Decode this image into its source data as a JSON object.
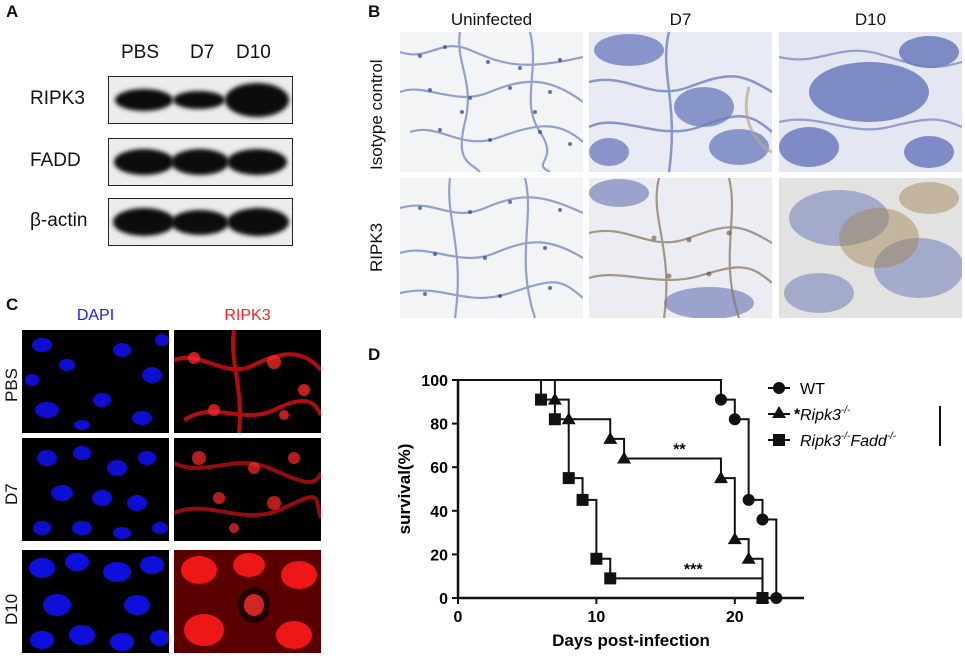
{
  "panels": {
    "a": "A",
    "b": "B",
    "c": "C",
    "d": "D"
  },
  "western_blot": {
    "lanes": [
      "PBS",
      "D7",
      "D10"
    ],
    "proteins": [
      "RIPK3",
      "FADD",
      "β-actin"
    ],
    "band_intensity": [
      [
        0.85,
        0.75,
        1.0
      ],
      [
        0.9,
        0.9,
        0.9
      ],
      [
        1.0,
        0.95,
        1.0
      ]
    ]
  },
  "histology": {
    "columns": [
      "Uninfected",
      "D7",
      "D10"
    ],
    "rows": [
      "Isotype control",
      "RIPK3"
    ]
  },
  "immunofluorescence": {
    "channels": [
      {
        "label": "DAPI",
        "color": "#1a1aff"
      },
      {
        "label": "RIPK3",
        "color": "#ff2020"
      }
    ],
    "rows": [
      "PBS",
      "D7",
      "D10"
    ]
  },
  "chart_data": {
    "type": "line",
    "title": "",
    "xlabel": "Days post-infection",
    "ylabel": "survival(%)",
    "xlim": [
      0,
      25
    ],
    "ylim": [
      0,
      100
    ],
    "xticks": [
      "0",
      "10",
      "20"
    ],
    "yticks": [
      "0",
      "20",
      "40",
      "60",
      "80",
      "100"
    ],
    "series": [
      {
        "name": "WT",
        "marker": "circle",
        "steps": [
          [
            0,
            100
          ],
          [
            19,
            100
          ],
          [
            19,
            91
          ],
          [
            20,
            91
          ],
          [
            20,
            82
          ],
          [
            21,
            82
          ],
          [
            21,
            45
          ],
          [
            22,
            45
          ],
          [
            22,
            36
          ],
          [
            23,
            36
          ],
          [
            23,
            0
          ]
        ],
        "points": [
          [
            19,
            91
          ],
          [
            20,
            82
          ],
          [
            21,
            45
          ],
          [
            22,
            36
          ],
          [
            23,
            0
          ]
        ]
      },
      {
        "name": "Ripk3",
        "superscript": "-/-",
        "marker": "triangle",
        "steps": [
          [
            0,
            100
          ],
          [
            7,
            100
          ],
          [
            7,
            91
          ],
          [
            8,
            91
          ],
          [
            8,
            82
          ],
          [
            11,
            82
          ],
          [
            11,
            73
          ],
          [
            12,
            73
          ],
          [
            12,
            64
          ],
          [
            19,
            64
          ],
          [
            19,
            55
          ],
          [
            20,
            55
          ],
          [
            20,
            27
          ],
          [
            21,
            27
          ],
          [
            21,
            18
          ],
          [
            22,
            18
          ],
          [
            22,
            0
          ]
        ],
        "points": [
          [
            7,
            91
          ],
          [
            8,
            82
          ],
          [
            11,
            73
          ],
          [
            12,
            64
          ],
          [
            19,
            55
          ],
          [
            20,
            27
          ],
          [
            21,
            18
          ],
          [
            22,
            0
          ]
        ]
      },
      {
        "name": "Ripk3-/-Fadd-/-",
        "marker": "square",
        "steps": [
          [
            0,
            100
          ],
          [
            6,
            100
          ],
          [
            6,
            91
          ],
          [
            7,
            91
          ],
          [
            7,
            82
          ],
          [
            8,
            82
          ],
          [
            8,
            55
          ],
          [
            9,
            55
          ],
          [
            9,
            45
          ],
          [
            10,
            45
          ],
          [
            10,
            18
          ],
          [
            11,
            18
          ],
          [
            11,
            9
          ],
          [
            22,
            9
          ],
          [
            22,
            0
          ]
        ],
        "points": [
          [
            6,
            91
          ],
          [
            7,
            82
          ],
          [
            8,
            55
          ],
          [
            9,
            45
          ],
          [
            10,
            18
          ],
          [
            11,
            9
          ],
          [
            22,
            0
          ]
        ]
      }
    ],
    "legend": {
      "wt": "WT",
      "ripk3": "Ripk3",
      "ripk3_sup": "-/-",
      "dko_a": "Ripk3",
      "dko_a_sup": "-/-",
      "dko_b": "Fadd",
      "dko_b_sup": "-/-",
      "placement": "top-right"
    },
    "annotations": [
      {
        "text": "**",
        "x": 16,
        "y": 64
      },
      {
        "text": "***",
        "x": 17,
        "y": 9
      },
      {
        "text": "*",
        "x": 24.5,
        "y": 80
      }
    ]
  }
}
